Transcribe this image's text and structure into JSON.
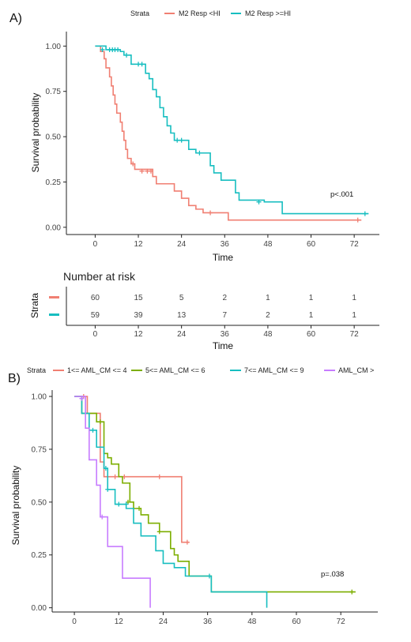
{
  "chart_data": [
    {
      "type": "line",
      "subtype": "kaplan-meier",
      "panel_label": "A)",
      "legend_title": "Strata",
      "legend_position": "top",
      "xlabel": "Time",
      "ylabel": "Survival probability",
      "xlim": [
        -8,
        79
      ],
      "ylim": [
        -0.04,
        1.08
      ],
      "xticks": [
        "0",
        "12",
        "24",
        "36",
        "48",
        "60",
        "72"
      ],
      "yticks": [
        "0.00",
        "0.25",
        "0.50",
        "0.75",
        "1.00"
      ],
      "grid": false,
      "pvalue": "p<.001",
      "series": [
        {
          "name": "M2 Resp <HI",
          "color": "#f07f72",
          "steps": [
            [
              0,
              1
            ],
            [
              1.5,
              0.97
            ],
            [
              2.5,
              0.93
            ],
            [
              3,
              0.88
            ],
            [
              4,
              0.83
            ],
            [
              4.5,
              0.78
            ],
            [
              5,
              0.73
            ],
            [
              5.5,
              0.68
            ],
            [
              6,
              0.63
            ],
            [
              7,
              0.58
            ],
            [
              7.5,
              0.53
            ],
            [
              8,
              0.48
            ],
            [
              8.5,
              0.43
            ],
            [
              9,
              0.38
            ],
            [
              10,
              0.35
            ],
            [
              11,
              0.32
            ],
            [
              16,
              0.28
            ],
            [
              17,
              0.24
            ],
            [
              22,
              0.2
            ],
            [
              24,
              0.16
            ],
            [
              26,
              0.12
            ],
            [
              28,
              0.1
            ],
            [
              30,
              0.08
            ],
            [
              37,
              0.04
            ],
            [
              74,
              0.04
            ]
          ],
          "censor": [
            [
              10.5,
              0.35
            ],
            [
              13,
              0.31
            ],
            [
              14.5,
              0.31
            ],
            [
              15.5,
              0.31
            ],
            [
              32,
              0.08
            ],
            [
              73,
              0.04
            ]
          ]
        },
        {
          "name": "M2 Resp >=HI",
          "color": "#17bec0",
          "steps": [
            [
              0,
              1
            ],
            [
              3,
              0.98
            ],
            [
              7,
              0.97
            ],
            [
              8,
              0.95
            ],
            [
              10,
              0.9
            ],
            [
              14,
              0.85
            ],
            [
              15,
              0.82
            ],
            [
              16,
              0.76
            ],
            [
              17,
              0.72
            ],
            [
              18,
              0.66
            ],
            [
              19,
              0.61
            ],
            [
              20,
              0.56
            ],
            [
              21,
              0.52
            ],
            [
              22,
              0.48
            ],
            [
              26,
              0.43
            ],
            [
              28,
              0.41
            ],
            [
              32,
              0.34
            ],
            [
              33,
              0.3
            ],
            [
              35,
              0.26
            ],
            [
              39,
              0.19
            ],
            [
              40,
              0.15
            ],
            [
              47,
              0.14
            ],
            [
              52,
              0.075
            ],
            [
              76,
              0.075
            ]
          ],
          "censor": [
            [
              2,
              0.98
            ],
            [
              4,
              0.98
            ],
            [
              4.8,
              0.98
            ],
            [
              5.5,
              0.98
            ],
            [
              6.3,
              0.98
            ],
            [
              8.7,
              0.95
            ],
            [
              12,
              0.9
            ],
            [
              13,
              0.9
            ],
            [
              22.8,
              0.48
            ],
            [
              24,
              0.48
            ],
            [
              29,
              0.41
            ],
            [
              45.5,
              0.14
            ],
            [
              75,
              0.075
            ]
          ]
        }
      ],
      "risk_table": {
        "title": "Number at risk",
        "strata_label": "Strata",
        "xlabel": "Time",
        "rows": [
          {
            "color": "#f07f72",
            "values": [
              "60",
              "15",
              "5",
              "2",
              "1",
              "1",
              "1"
            ]
          },
          {
            "color": "#17bec0",
            "values": [
              "59",
              "39",
              "13",
              "7",
              "2",
              "1",
              "1"
            ]
          }
        ]
      }
    },
    {
      "type": "line",
      "subtype": "kaplan-meier",
      "panel_label": "B)",
      "legend_title": "Strata",
      "legend_position": "top",
      "xlabel": "",
      "ylabel": "Survival probability",
      "xlim": [
        -6,
        82
      ],
      "ylim": [
        -0.02,
        1.03
      ],
      "xticks": [
        "0",
        "12",
        "24",
        "36",
        "48",
        "60",
        "72"
      ],
      "yticks": [
        "0.00",
        "0.25",
        "0.50",
        "0.75",
        "1.00"
      ],
      "grid": false,
      "pvalue": "p=.038",
      "series": [
        {
          "name": "1<= AML_CM <= 4",
          "color": "#f07f72",
          "steps": [
            [
              0,
              1
            ],
            [
              3.5,
              0.92
            ],
            [
              7,
              0.69
            ],
            [
              8,
              0.62
            ],
            [
              10,
              0.62
            ],
            [
              29,
              0.31
            ],
            [
              31,
              0.31
            ]
          ],
          "censor": [
            [
              2.5,
              1.0
            ],
            [
              11,
              0.62
            ],
            [
              13.5,
              0.62
            ],
            [
              23,
              0.62
            ],
            [
              30.5,
              0.31
            ]
          ]
        },
        {
          "name": "5<= AML_CM <= 6",
          "color": "#7cae00",
          "steps": [
            [
              0,
              1
            ],
            [
              2,
              0.92
            ],
            [
              6,
              0.88
            ],
            [
              8,
              0.73
            ],
            [
              9,
              0.71
            ],
            [
              10,
              0.68
            ],
            [
              12,
              0.62
            ],
            [
              13,
              0.59
            ],
            [
              15,
              0.5
            ],
            [
              16,
              0.47
            ],
            [
              18,
              0.44
            ],
            [
              20,
              0.4
            ],
            [
              23,
              0.36
            ],
            [
              26,
              0.28
            ],
            [
              27,
              0.25
            ],
            [
              28,
              0.22
            ],
            [
              31,
              0.15
            ],
            [
              37,
              0.075
            ],
            [
              76,
              0.075
            ]
          ],
          "censor": [
            [
              7,
              0.88
            ],
            [
              14.5,
              0.5
            ],
            [
              17.5,
              0.47
            ],
            [
              23,
              0.36
            ],
            [
              75,
              0.075
            ]
          ]
        },
        {
          "name": "7<= AML_CM <= 9",
          "color": "#17bec0",
          "steps": [
            [
              0,
              1
            ],
            [
              2,
              0.92
            ],
            [
              4,
              0.84
            ],
            [
              6,
              0.76
            ],
            [
              8,
              0.66
            ],
            [
              9,
              0.56
            ],
            [
              11,
              0.49
            ],
            [
              14,
              0.47
            ],
            [
              16,
              0.4
            ],
            [
              18,
              0.34
            ],
            [
              22,
              0.27
            ],
            [
              24,
              0.21
            ],
            [
              27,
              0.19
            ],
            [
              30,
              0.15
            ],
            [
              37,
              0.075
            ],
            [
              52,
              0.075
            ],
            [
              52,
              0.0
            ]
          ],
          "censor": [
            [
              5,
              0.84
            ],
            [
              8.5,
              0.66
            ],
            [
              9,
              0.56
            ],
            [
              12,
              0.49
            ],
            [
              14,
              0.49
            ],
            [
              36.5,
              0.15
            ]
          ]
        },
        {
          "name": "AML_CM >",
          "color": "#c77cff",
          "steps": [
            [
              0,
              1
            ],
            [
              3,
              0.85
            ],
            [
              4,
              0.7
            ],
            [
              6,
              0.58
            ],
            [
              7,
              0.43
            ],
            [
              9,
              0.29
            ],
            [
              13,
              0.14
            ],
            [
              20.5,
              0.14
            ],
            [
              20.5,
              0.0
            ]
          ],
          "censor": [
            [
              2,
              0.99
            ],
            [
              7.5,
              0.43
            ]
          ]
        }
      ]
    }
  ]
}
